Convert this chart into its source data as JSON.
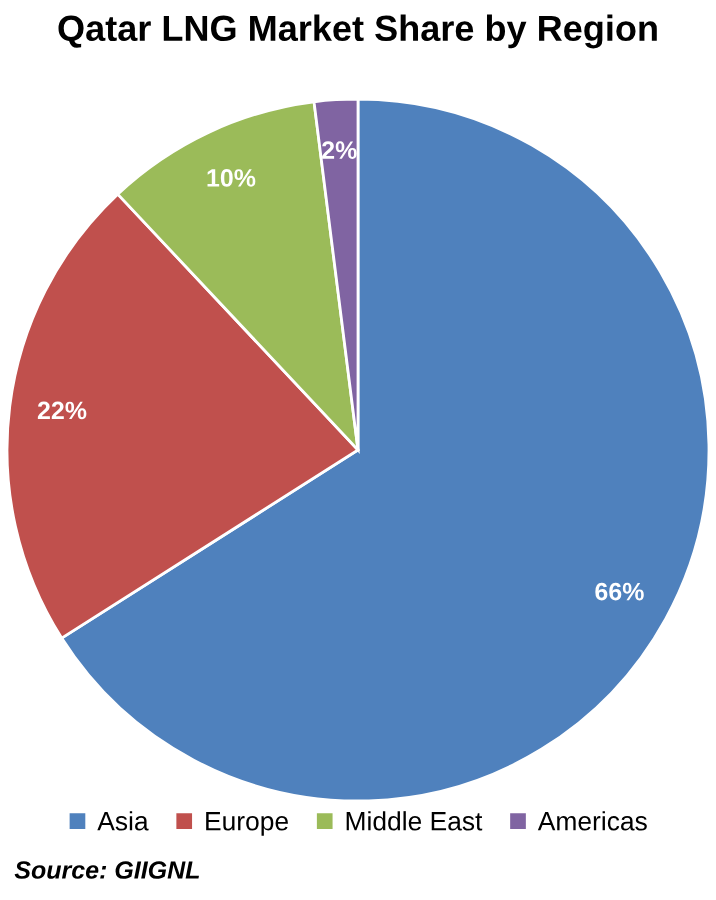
{
  "chart_data": {
    "type": "pie",
    "title": "Qatar LNG Market Share by Region",
    "categories": [
      "Asia",
      "Europe",
      "Middle East",
      "Americas"
    ],
    "values": [
      66,
      22,
      10,
      2
    ],
    "colors": [
      "#4f81bd",
      "#c0504d",
      "#9bbb59",
      "#8064a2"
    ],
    "value_labels": [
      "66%",
      "22%",
      "10%",
      "2%"
    ],
    "legend": "bottom",
    "annotations": [
      "Source: GIIGNL"
    ]
  }
}
